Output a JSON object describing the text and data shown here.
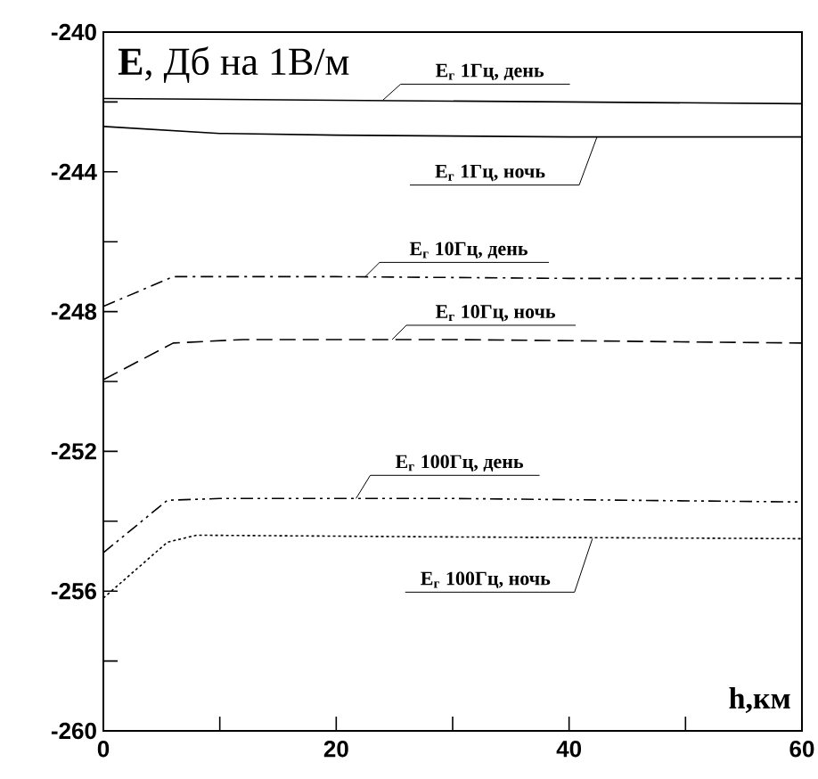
{
  "chart_data": {
    "type": "line",
    "ylabel": "**E**, Дб на 1В/м",
    "xlabel": "h,км",
    "xlim": [
      0,
      60
    ],
    "ylim": [
      -260,
      -240
    ],
    "xticks": [
      0,
      {
        "value": 10,
        "label": null
      },
      20,
      {
        "value": 30,
        "label": null
      },
      40,
      {
        "value": 50,
        "label": null
      },
      60
    ],
    "yticks": [
      -260,
      {
        "value": -258,
        "label": null
      },
      -256,
      {
        "value": -254,
        "label": null
      },
      -252,
      {
        "value": -250,
        "label": null
      },
      -248,
      {
        "value": -246,
        "label": null
      },
      -244,
      {
        "value": -242,
        "label": null
      },
      -240
    ],
    "series": [
      {
        "color": "#000000",
        "line_style": "solid",
        "x": [
          0,
          20,
          40,
          60
        ],
        "values": [
          -241.9,
          -241.95,
          -242.0,
          -242.05
        ]
      },
      {
        "color": "#000000",
        "line_style": "solid",
        "x": [
          0,
          10,
          20,
          40,
          60
        ],
        "values": [
          -242.7,
          -242.9,
          -242.95,
          -243.0,
          -243.0
        ]
      },
      {
        "color": "#000000",
        "line_style": "dashdot",
        "x": [
          0,
          6,
          20,
          40,
          60
        ],
        "values": [
          -247.85,
          -247.0,
          -247.0,
          -247.05,
          -247.05
        ]
      },
      {
        "color": "#000000",
        "line_style": "dashed",
        "x": [
          0,
          6,
          12,
          30,
          60
        ],
        "values": [
          -249.95,
          -248.9,
          -248.8,
          -248.8,
          -248.9
        ]
      },
      {
        "color": "#000000",
        "line_style": "dashdotdot",
        "x": [
          0,
          5.5,
          10,
          30,
          60
        ],
        "values": [
          -254.9,
          -253.4,
          -253.35,
          -253.35,
          -253.45
        ]
      },
      {
        "color": "#000000",
        "line_style": "dotted",
        "x": [
          0,
          5.5,
          8,
          30,
          60
        ],
        "values": [
          -256.2,
          -254.6,
          -254.4,
          -254.45,
          -254.5
        ]
      }
    ],
    "annotations": [
      {
        "text": "E$_{г}$ 1Гц, день",
        "x": 24,
        "y": -241.95
      },
      {
        "text": "E$_{г}$ 1Гц, ночь",
        "x": 42.4,
        "y": -243.0
      },
      {
        "text": "E$_{г}$ 10Гц, день",
        "x": 22.5,
        "y": -247.0
      },
      {
        "text": "E$_{г}$ 10Гц, ночь",
        "x": 24.8,
        "y": -248.8
      },
      {
        "text": "E$_{г}$ 100Гц, день",
        "x": 21.7,
        "y": -253.35
      },
      {
        "text": "E$_{г}$ 100Гц, ночь",
        "x": 42,
        "y": -254.5
      }
    ]
  }
}
